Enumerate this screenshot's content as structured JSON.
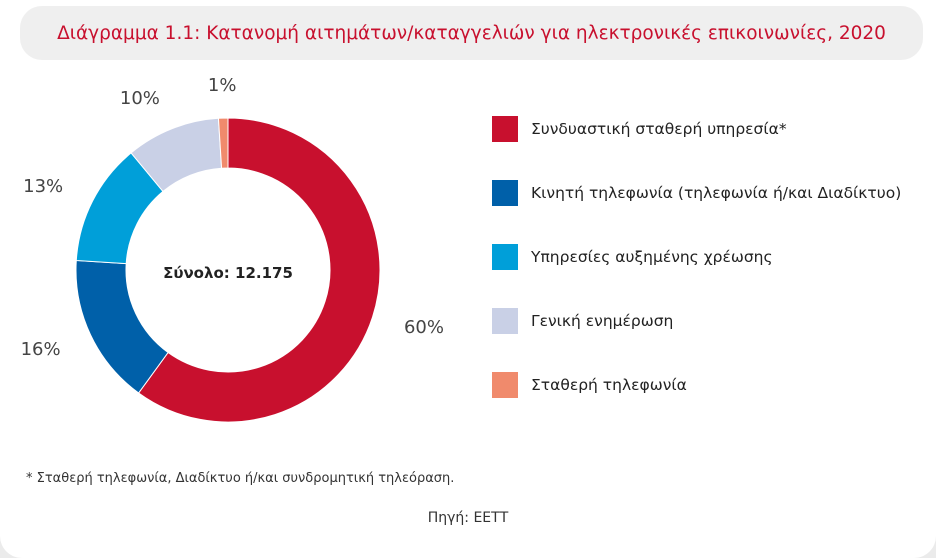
{
  "title": "Διάγραμμα 1.1: Κατανομή αιτημάτων/καταγγελιών για ηλεκτρονικές επικοινωνίες, 2020",
  "chart_data": {
    "type": "pie",
    "donut": true,
    "center_label": "Σύνολο: 12.175",
    "legend_placement": "right",
    "series": [
      {
        "name": "Συνδυαστική σταθερή υπηρεσία*",
        "value": 60,
        "label": "60%",
        "color": "#c8102e"
      },
      {
        "name": "Κινητή τηλεφωνία (τηλεφωνία ή/και Διαδίκτυο)",
        "value": 16,
        "label": "16%",
        "color": "#0060a9"
      },
      {
        "name": "Υπηρεσίες αυξημένης χρέωσης",
        "value": 13,
        "label": "13%",
        "color": "#009fd9"
      },
      {
        "name": "Γενική ενημέρωση",
        "value": 10,
        "label": "10%",
        "color": "#c9d0e6"
      },
      {
        "name": "Σταθερή τηλεφωνία",
        "value": 1,
        "label": "1%",
        "color": "#f08a6c"
      }
    ]
  },
  "footnote": "* Σταθερή τηλεφωνία, Διαδίκτυο ή/και συνδρομητική τηλεόραση.",
  "source": "Πηγή: ΕΕΤΤ"
}
